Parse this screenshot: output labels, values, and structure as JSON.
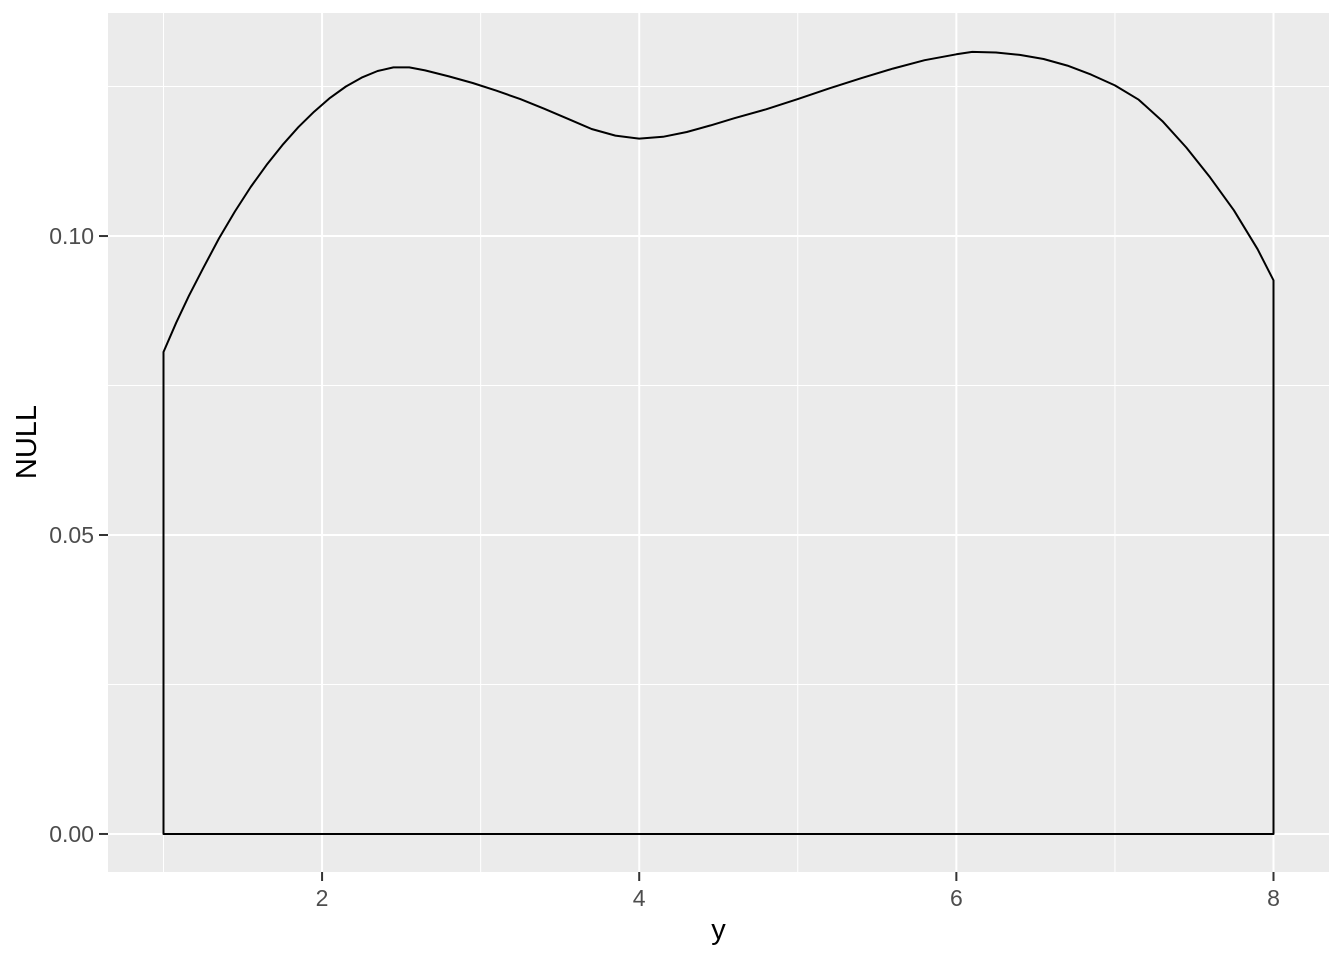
{
  "chart_data": {
    "type": "line",
    "subtype": "density",
    "title": "",
    "xlabel": "y",
    "ylabel": "NULL",
    "x_tick_labels": [
      "2",
      "4",
      "6",
      "8"
    ],
    "x_tick_values": [
      2,
      4,
      6,
      8
    ],
    "x_minor_gridlines": [
      1,
      3,
      5,
      7
    ],
    "y_tick_labels": [
      "0.00",
      "0.05",
      "0.10"
    ],
    "y_tick_values": [
      0,
      0.05,
      0.1
    ],
    "y_minor_gridlines": [
      0.025,
      0.075,
      0.125
    ],
    "xlim": [
      0.65,
      8.35
    ],
    "ylim": [
      -0.00636,
      0.1373
    ],
    "grid": true,
    "legend_position": "none",
    "colors": {
      "figure_background": "#FFFFFF",
      "panel_background": "#EBEBEB",
      "gridline": "#FFFFFF",
      "line": "#000000",
      "axis_text": "#4D4D4D",
      "axis_title": "#000000",
      "tick_mark": "#333333"
    },
    "series": [
      {
        "name": "density",
        "closed_to_baseline": true,
        "baseline": 0,
        "points": [
          [
            1.0,
            0.0806
          ],
          [
            1.08,
            0.0855
          ],
          [
            1.16,
            0.09
          ],
          [
            1.25,
            0.0946
          ],
          [
            1.35,
            0.0996
          ],
          [
            1.45,
            0.1041
          ],
          [
            1.55,
            0.1082
          ],
          [
            1.65,
            0.1119
          ],
          [
            1.75,
            0.1152
          ],
          [
            1.85,
            0.1182
          ],
          [
            1.95,
            0.1208
          ],
          [
            2.05,
            0.1231
          ],
          [
            2.15,
            0.125
          ],
          [
            2.25,
            0.1265
          ],
          [
            2.35,
            0.1276
          ],
          [
            2.45,
            0.1282
          ],
          [
            2.55,
            0.1282
          ],
          [
            2.65,
            0.1277
          ],
          [
            2.8,
            0.1267
          ],
          [
            2.95,
            0.1256
          ],
          [
            3.1,
            0.1243
          ],
          [
            3.25,
            0.1229
          ],
          [
            3.4,
            0.1213
          ],
          [
            3.55,
            0.1196
          ],
          [
            3.7,
            0.1179
          ],
          [
            3.85,
            0.1168
          ],
          [
            4.0,
            0.1163
          ],
          [
            4.15,
            0.1166
          ],
          [
            4.3,
            0.1174
          ],
          [
            4.45,
            0.1185
          ],
          [
            4.6,
            0.1197
          ],
          [
            4.8,
            0.1212
          ],
          [
            5.0,
            0.1229
          ],
          [
            5.2,
            0.1247
          ],
          [
            5.4,
            0.1264
          ],
          [
            5.6,
            0.128
          ],
          [
            5.8,
            0.1294
          ],
          [
            6.0,
            0.1304
          ],
          [
            6.1,
            0.1308
          ],
          [
            6.25,
            0.1307
          ],
          [
            6.4,
            0.1303
          ],
          [
            6.55,
            0.1296
          ],
          [
            6.7,
            0.1285
          ],
          [
            6.85,
            0.127
          ],
          [
            7.0,
            0.1252
          ],
          [
            7.15,
            0.1228
          ],
          [
            7.3,
            0.1192
          ],
          [
            7.45,
            0.1148
          ],
          [
            7.6,
            0.1098
          ],
          [
            7.75,
            0.1043
          ],
          [
            7.9,
            0.0978
          ],
          [
            8.0,
            0.0926
          ]
        ]
      }
    ]
  }
}
